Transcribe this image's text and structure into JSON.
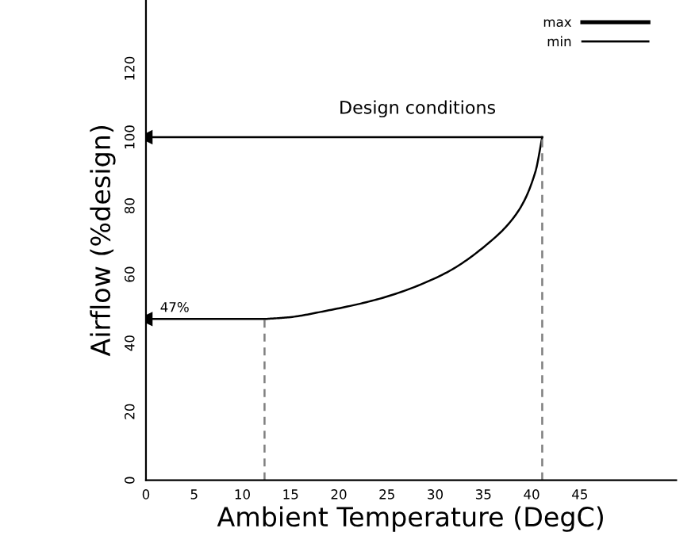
{
  "chart_data": {
    "type": "line",
    "xlabel": "Ambient Temperature (DegC)",
    "ylabel": "Airflow (%design)",
    "xlim": [
      0,
      55
    ],
    "xticks": [
      0,
      5,
      10,
      15,
      20,
      25,
      30,
      35,
      40,
      45
    ],
    "ylim": [
      0,
      140
    ],
    "yticks": [
      0,
      20,
      40,
      60,
      80,
      100,
      120
    ],
    "grid": false,
    "legend": "top right",
    "series": [
      {
        "name": "max",
        "color": "#000000"
      },
      {
        "name": "min",
        "color": "#000000",
        "x": [
          12.3,
          14.8,
          18.7,
          24.2,
          30.8,
          35.3,
          38.6,
          40.4,
          41.1
        ],
        "values": [
          47,
          47.5,
          49.4,
          52.9,
          60,
          68.6,
          78.4,
          90,
          100
        ]
      },
      {
        "color": "#000000",
        "x": [
          0,
          12.3
        ],
        "values": [
          47,
          47
        ],
        "marker": "triangle"
      },
      {
        "color": "#000000",
        "x": [
          0,
          41.1
        ],
        "values": [
          100,
          100
        ],
        "marker": "triangle"
      },
      {
        "color": "#7f7f7f",
        "x": [
          12.3,
          12.3
        ],
        "values": [
          0,
          47
        ],
        "line_style": "dashed"
      },
      {
        "color": "#7f7f7f",
        "x": [
          41.1,
          41.1
        ],
        "values": [
          0,
          100
        ],
        "line_style": "dashed"
      }
    ],
    "annotations": [
      {
        "text": "Design conditions",
        "x": 20,
        "y": 100
      },
      {
        "text": "47%",
        "x": 1,
        "y": 47
      }
    ]
  }
}
